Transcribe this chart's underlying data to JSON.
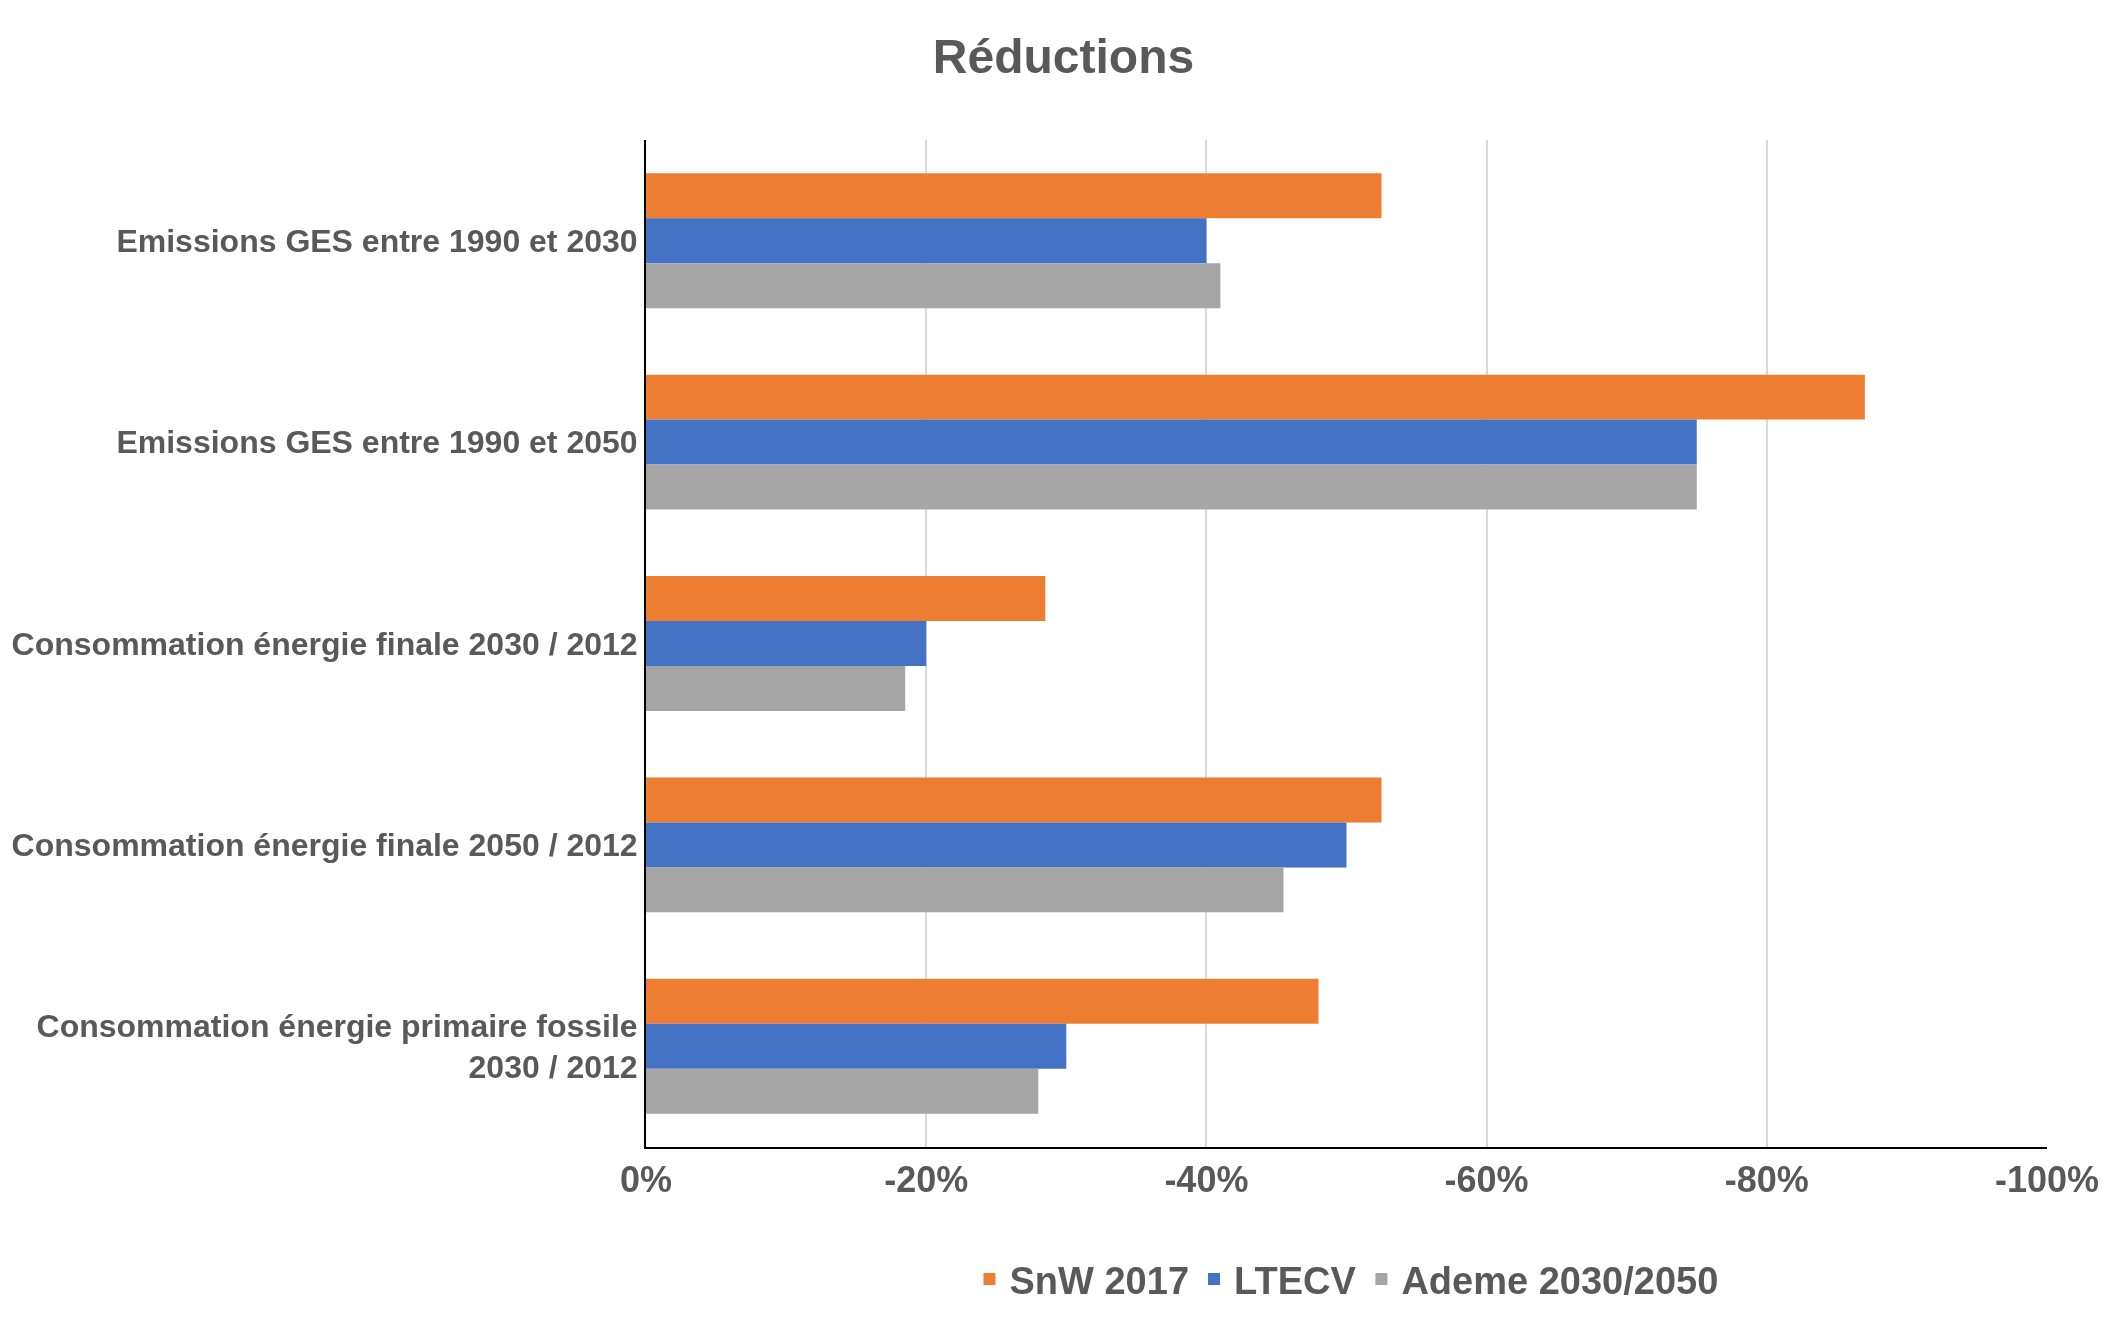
{
  "chart_data": {
    "type": "bar",
    "orientation": "horizontal",
    "title": "Réductions",
    "categories": [
      "Emissions GES entre 1990 et 2030",
      "Emissions GES entre 1990 et 2050",
      "Consommation énergie finale 2030 / 2012",
      "Consommation énergie finale 2050 / 2012",
      "Consommation énergie primaire fossile 2030 / 2012"
    ],
    "series": [
      {
        "name": "SnW 2017",
        "color": "#ed7d31",
        "values": [
          -52.5,
          -87,
          -28.5,
          -52.5,
          -48
        ]
      },
      {
        "name": "LTECV",
        "color": "#4472c4",
        "values": [
          -40,
          -75,
          -20,
          -50,
          -30
        ]
      },
      {
        "name": "Ademe 2030/2050",
        "color": "#a5a5a5",
        "values": [
          -41,
          -75,
          -18.5,
          -45.5,
          -28
        ]
      }
    ],
    "xlim": [
      0,
      -100
    ],
    "xticks": [
      {
        "value": 0,
        "label": "0%"
      },
      {
        "value": -20,
        "label": "-20%"
      },
      {
        "value": -40,
        "label": "-40%"
      },
      {
        "value": -60,
        "label": "-60%"
      },
      {
        "value": -80,
        "label": "-80%"
      },
      {
        "value": -100,
        "label": "-100%"
      }
    ],
    "grid": "x",
    "legend": "bottom"
  }
}
